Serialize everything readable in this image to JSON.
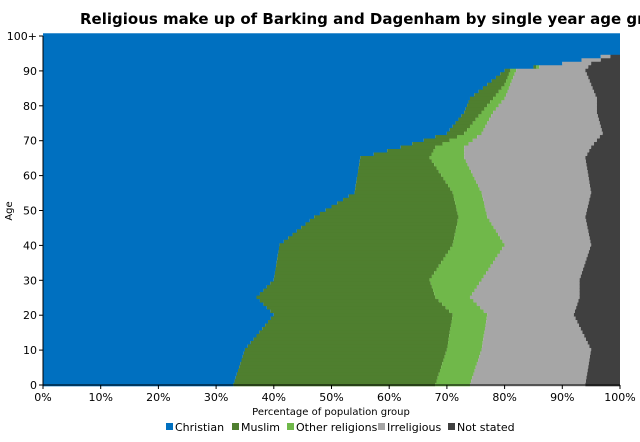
{
  "chart_data": {
    "type": "bar",
    "orientation": "horizontal",
    "stacked": true,
    "title": "Religious make up of Barking and Dagenham by single year age gro",
    "xlabel": "Percentage of population group",
    "ylabel": "Age",
    "xlim": [
      0,
      100
    ],
    "ylim": [
      0,
      100
    ],
    "x_ticks": [
      "0%",
      "10%",
      "20%",
      "30%",
      "40%",
      "50%",
      "60%",
      "70%",
      "80%",
      "90%",
      "100%"
    ],
    "y_ticks": [
      "0",
      "10",
      "20",
      "30",
      "40",
      "50",
      "60",
      "70",
      "80",
      "90",
      "100+"
    ],
    "legend_position": "bottom",
    "grid": false,
    "series_colors": {
      "Christian": "#0070c0",
      "Muslim": "#4f7f2f",
      "Other religions": "#70b84a",
      "Irreligious": "#a6a6a6",
      "Not stated": "#404040"
    },
    "age_keys": [
      0,
      10,
      20,
      25,
      30,
      40,
      48,
      55,
      65,
      68,
      72,
      78,
      82,
      86,
      90,
      92,
      95,
      100
    ],
    "series": [
      {
        "name": "Christian",
        "values": [
          33,
          35,
          40,
          37,
          40,
          41,
          47,
          54,
          55,
          62,
          70,
          73,
          74,
          77,
          80,
          90,
          100,
          100
        ]
      },
      {
        "name": "Muslim",
        "values": [
          35,
          35,
          31,
          31,
          27,
          30,
          25,
          17,
          12,
          6,
          3,
          3,
          4,
          3,
          1,
          0,
          0,
          0
        ]
      },
      {
        "name": "Other religions",
        "values": [
          6,
          6,
          6,
          6,
          9,
          9,
          5,
          5,
          6,
          5,
          3,
          2,
          2,
          1,
          1,
          0,
          0,
          0
        ]
      },
      {
        "name": "Irreligious",
        "values": [
          20,
          19,
          15,
          19,
          17,
          15,
          17,
          19,
          21,
          22,
          21,
          18,
          16,
          14,
          12,
          5,
          0,
          0
        ]
      },
      {
        "name": "Not stated",
        "values": [
          6,
          5,
          8,
          7,
          7,
          5,
          6,
          5,
          6,
          5,
          3,
          4,
          4,
          5,
          6,
          5,
          0,
          0
        ]
      }
    ]
  }
}
